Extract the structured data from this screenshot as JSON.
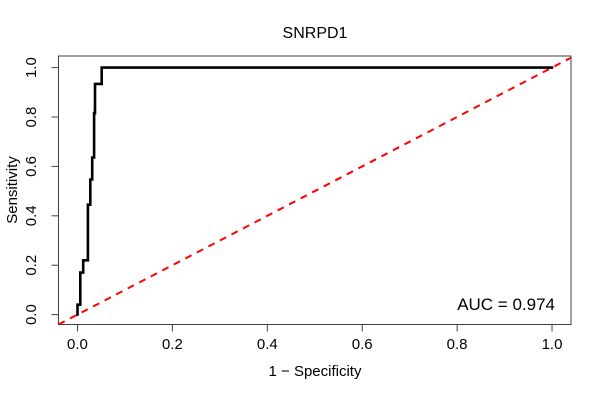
{
  "figure": {
    "background": "#ffffff",
    "frame_color": "#404040",
    "text_color": "#000000"
  },
  "chart_data": {
    "type": "line",
    "subtype": "roc-curve",
    "title": "SNRPD1",
    "xlabel": "1 − Specificity",
    "ylabel": "Sensitivity",
    "x_tick_labels": [
      "0.0",
      "0.2",
      "0.4",
      "0.6",
      "0.8",
      "1.0"
    ],
    "y_tick_labels": [
      "0.0",
      "0.2",
      "0.4",
      "0.6",
      "0.8",
      "1.0"
    ],
    "x_tick_values": [
      0.0,
      0.2,
      0.4,
      0.6,
      0.8,
      1.0
    ],
    "y_tick_values": [
      0.0,
      0.2,
      0.4,
      0.6,
      0.8,
      1.0
    ],
    "xlim": [
      -0.04,
      1.04
    ],
    "ylim": [
      -0.04,
      1.047
    ],
    "grid": false,
    "legend": "none",
    "auc": 0.974,
    "annotation": "AUC = 0.974",
    "series": [
      {
        "name": "ROC curve",
        "color": "#000000",
        "style": "solid",
        "line_width": 2.6,
        "points": [
          [
            0.0,
            0.0
          ],
          [
            0.0,
            0.04
          ],
          [
            0.006,
            0.04
          ],
          [
            0.006,
            0.17
          ],
          [
            0.012,
            0.17
          ],
          [
            0.012,
            0.22
          ],
          [
            0.022,
            0.22
          ],
          [
            0.022,
            0.445
          ],
          [
            0.027,
            0.445
          ],
          [
            0.027,
            0.547
          ],
          [
            0.031,
            0.547
          ],
          [
            0.031,
            0.636
          ],
          [
            0.035,
            0.636
          ],
          [
            0.035,
            0.816
          ],
          [
            0.037,
            0.816
          ],
          [
            0.037,
            0.934
          ],
          [
            0.051,
            0.934
          ],
          [
            0.051,
            1.0
          ],
          [
            1.0,
            1.0
          ]
        ]
      },
      {
        "name": "chance diagonal",
        "color": "#FF0000",
        "style": "dashed",
        "line_width": 2,
        "points": [
          [
            -0.04,
            -0.04
          ],
          [
            1.04,
            1.04
          ]
        ]
      }
    ]
  }
}
